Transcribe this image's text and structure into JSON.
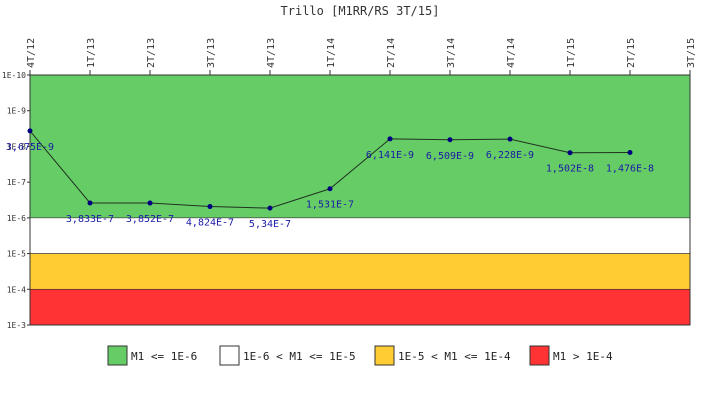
{
  "chart_data": {
    "type": "line",
    "title": "Trillo [M1RR/RS 3T/15]",
    "x_categories": [
      "4T/12",
      "1T/13",
      "2T/13",
      "3T/13",
      "4T/13",
      "1T/14",
      "2T/14",
      "3T/14",
      "4T/14",
      "1T/15",
      "2T/15",
      "3T/15"
    ],
    "y_scale": "log",
    "y_reversed": true,
    "y_ticks": [
      "1E-10",
      "1E-9",
      "1E-8",
      "1E-7",
      "1E-6",
      "1E-5",
      "1E-4",
      "1E-3"
    ],
    "y_tick_values": [
      1e-10,
      1e-09,
      1e-08,
      1e-07,
      1e-06,
      1e-05,
      0.0001,
      0.001
    ],
    "ylim": [
      1e-10,
      0.001
    ],
    "series": [
      {
        "values": [
          3.675e-09,
          3.833e-07,
          3.852e-07,
          4.824e-07,
          5.34e-07,
          1.531e-07,
          6.141e-09,
          6.509e-09,
          6.228e-09,
          1.502e-08,
          1.476e-08,
          null
        ],
        "labels": [
          "3,675E-9",
          "3,833E-7",
          "3,852E-7",
          "4,824E-7",
          "5,34E-7",
          "1,531E-7",
          "6,141E-9",
          "6,509E-9",
          "6,228E-9",
          "1,502E-8",
          "1,476E-8",
          ""
        ],
        "color": "#000080"
      }
    ],
    "bands": [
      {
        "from": 1e-10,
        "to": 1e-06,
        "color": "#66cc66",
        "legend": "M1 <= 1E-6"
      },
      {
        "from": 1e-06,
        "to": 1e-05,
        "color": "#ffffff",
        "legend": "1E-6 < M1 <= 1E-5"
      },
      {
        "from": 1e-05,
        "to": 0.0001,
        "color": "#ffcc33",
        "legend": "1E-5 < M1 <= 1E-4"
      },
      {
        "from": 0.0001,
        "to": 0.001,
        "color": "#ff3333",
        "legend": "M1 > 1E-4"
      }
    ],
    "grid": false,
    "legend_position": "bottom"
  }
}
